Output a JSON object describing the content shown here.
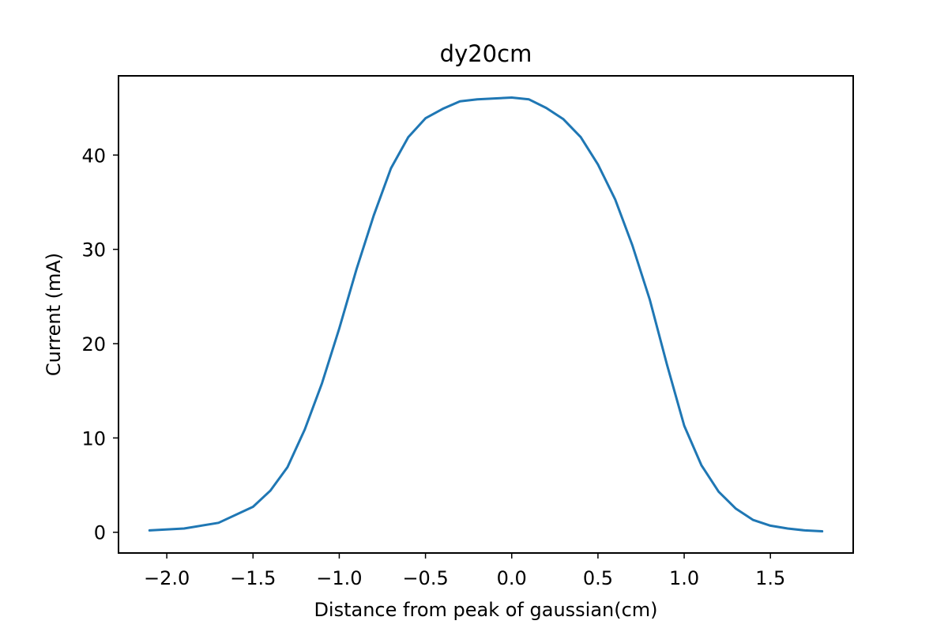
{
  "chart_data": {
    "type": "line",
    "title": "dy20cm",
    "xlabel": "Distance from peak of gaussian(cm)",
    "ylabel": "Current (mA)",
    "xlim": [
      -2.28,
      1.98
    ],
    "ylim": [
      -2.2,
      48.4
    ],
    "xticks": [
      -2.0,
      -1.5,
      -1.0,
      -0.5,
      0.0,
      0.5,
      1.0,
      1.5
    ],
    "xtick_labels": [
      "−2.0",
      "−1.5",
      "−1.0",
      "−0.5",
      "0.0",
      "0.5",
      "1.0",
      "1.5"
    ],
    "yticks": [
      0,
      10,
      20,
      30,
      40
    ],
    "ytick_labels": [
      "0",
      "10",
      "20",
      "30",
      "40"
    ],
    "grid": false,
    "line_color": "#1f77b4",
    "series": [
      {
        "x": [
          -2.1,
          -1.9,
          -1.7,
          -1.5,
          -1.4,
          -1.3,
          -1.2,
          -1.1,
          -1.0,
          -0.9,
          -0.8,
          -0.7,
          -0.6,
          -0.5,
          -0.4,
          -0.3,
          -0.2,
          -0.1,
          0.0,
          0.1,
          0.2,
          0.3,
          0.4,
          0.5,
          0.6,
          0.7,
          0.8,
          0.9,
          1.0,
          1.1,
          1.2,
          1.3,
          1.4,
          1.5,
          1.6,
          1.7,
          1.8
        ],
        "y": [
          0.2,
          0.4,
          1.0,
          2.7,
          4.4,
          6.9,
          10.9,
          15.8,
          21.6,
          27.9,
          33.6,
          38.6,
          41.9,
          43.9,
          44.9,
          45.7,
          45.9,
          46.0,
          46.1,
          45.9,
          45.0,
          43.8,
          41.9,
          39.0,
          35.3,
          30.4,
          24.7,
          17.8,
          11.3,
          7.1,
          4.3,
          2.5,
          1.3,
          0.7,
          0.4,
          0.2,
          0.1
        ]
      }
    ]
  }
}
